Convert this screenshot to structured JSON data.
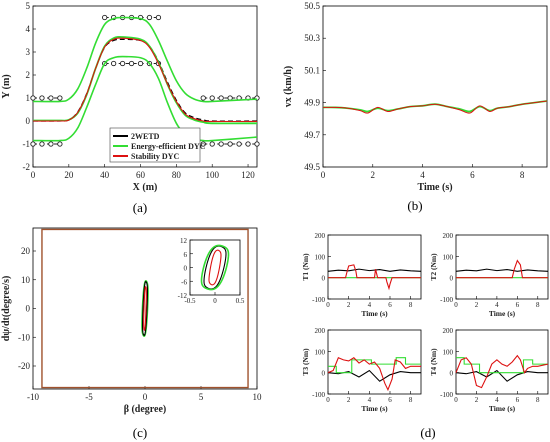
{
  "captions": [
    "(a)",
    "(b)",
    "(c)",
    "(d)"
  ],
  "colors": {
    "2WETD": "#000000",
    "energy": "#33dd33",
    "stability": "#dd1111",
    "boundary": "#a0522d"
  },
  "chart_data": [
    {
      "id": "a",
      "type": "line",
      "xlabel": "X (m)",
      "ylabel": "Y (m)",
      "xlim": [
        0,
        125
      ],
      "ylim": [
        -2,
        5
      ],
      "xticks": [
        0,
        20,
        40,
        60,
        80,
        100,
        120
      ],
      "yticks": [
        -2,
        -1,
        0,
        1,
        2,
        3,
        4,
        5
      ],
      "legend": {
        "placement": "bottom-center",
        "entries": [
          "2WETD",
          "Energy-efficient DYC",
          "Stability DYC"
        ]
      },
      "cones": [
        {
          "x": [
            0,
            5,
            10,
            15
          ],
          "y": 1
        },
        {
          "x": [
            0,
            5,
            10,
            15
          ],
          "y": -1
        },
        {
          "x": [
            40,
            45,
            50,
            55,
            60,
            65,
            70
          ],
          "y": 4.5
        },
        {
          "x": [
            40,
            45,
            50,
            55,
            60,
            65,
            70
          ],
          "y": 2.5
        },
        {
          "x": [
            95,
            100,
            105,
            110,
            115,
            120,
            125
          ],
          "y": 1
        },
        {
          "x": [
            95,
            100,
            105,
            110,
            115,
            120,
            125
          ],
          "y": -1
        }
      ],
      "series": [
        {
          "name": "2WETD",
          "x": [
            0,
            15,
            20,
            25,
            30,
            35,
            40,
            45,
            50,
            60,
            65,
            70,
            75,
            80,
            85,
            90,
            95,
            100,
            125
          ],
          "y": [
            0,
            0,
            0.05,
            0.4,
            1.2,
            2.3,
            3.2,
            3.5,
            3.55,
            3.5,
            3.25,
            2.6,
            1.7,
            0.9,
            0.35,
            0.15,
            0.05,
            0,
            0
          ]
        },
        {
          "name": "Energy-efficient DYC",
          "x": [
            0,
            15,
            20,
            25,
            30,
            35,
            40,
            45,
            50,
            60,
            65,
            70,
            75,
            80,
            85,
            90,
            95,
            100,
            125
          ],
          "y": [
            0.02,
            0.02,
            0.05,
            0.35,
            1.15,
            2.3,
            3.25,
            3.6,
            3.65,
            3.55,
            3.25,
            2.55,
            1.6,
            0.8,
            0.25,
            0.05,
            -0.05,
            -0.1,
            -0.1
          ]
        },
        {
          "name": "Stability DYC",
          "x": [
            0,
            15,
            20,
            25,
            30,
            35,
            40,
            45,
            50,
            60,
            65,
            70,
            75,
            80,
            85,
            90,
            95,
            100,
            125
          ],
          "y": [
            0,
            0,
            0.04,
            0.38,
            1.18,
            2.3,
            3.22,
            3.55,
            3.6,
            3.5,
            3.2,
            2.5,
            1.62,
            0.85,
            0.3,
            0.1,
            0,
            -0.02,
            -0.02
          ]
        },
        {
          "name": "Energy-efficient DYC upper",
          "x": [
            0,
            15,
            20,
            25,
            30,
            35,
            40,
            45,
            50,
            60,
            65,
            70,
            75,
            80,
            85,
            90,
            95,
            100,
            125
          ],
          "y": [
            0.85,
            0.85,
            0.95,
            1.4,
            2.3,
            3.4,
            4.2,
            4.45,
            4.5,
            4.45,
            4.2,
            3.5,
            2.6,
            1.75,
            1.2,
            0.95,
            0.85,
            0.85,
            0.95
          ]
        },
        {
          "name": "Energy-efficient DYC lower",
          "x": [
            0,
            15,
            20,
            25,
            30,
            35,
            40,
            45,
            50,
            60,
            65,
            70,
            75,
            80,
            85,
            90,
            95,
            100,
            125
          ],
          "y": [
            -0.85,
            -0.85,
            -0.75,
            -0.3,
            0.6,
            1.6,
            2.5,
            2.75,
            2.8,
            2.75,
            2.5,
            1.85,
            0.8,
            -0.1,
            -0.6,
            -0.8,
            -0.85,
            -0.85,
            -0.7
          ]
        }
      ]
    },
    {
      "id": "b",
      "type": "line",
      "xlabel": "Time (s)",
      "ylabel": "vx (km/h)",
      "xlim": [
        0,
        9
      ],
      "ylim": [
        49.5,
        50.5
      ],
      "xticks": [
        0,
        2,
        4,
        6,
        8
      ],
      "yticks": [
        49.5,
        49.7,
        49.9,
        50.1,
        50.3,
        50.5
      ],
      "series": [
        {
          "name": "Energy-efficient DYC",
          "x": [
            0,
            0.5,
            1,
            1.5,
            1.8,
            2.2,
            2.6,
            3,
            3.5,
            4,
            4.5,
            5,
            5.5,
            5.9,
            6.3,
            6.7,
            7,
            7.5,
            8,
            8.5,
            9
          ],
          "y": [
            49.87,
            49.87,
            49.865,
            49.855,
            49.845,
            49.865,
            49.85,
            49.86,
            49.875,
            49.88,
            49.89,
            49.875,
            49.86,
            49.845,
            49.875,
            49.85,
            49.865,
            49.875,
            49.89,
            49.9,
            49.91
          ]
        },
        {
          "name": "Stability DYC",
          "x": [
            0,
            0.5,
            1,
            1.5,
            1.8,
            2.2,
            2.6,
            3,
            3.5,
            4,
            4.5,
            5,
            5.5,
            5.9,
            6.3,
            6.7,
            7,
            7.5,
            8,
            8.5,
            9
          ],
          "y": [
            49.87,
            49.87,
            49.865,
            49.85,
            49.835,
            49.87,
            49.845,
            49.86,
            49.875,
            49.88,
            49.89,
            49.875,
            49.855,
            49.835,
            49.88,
            49.845,
            49.865,
            49.875,
            49.89,
            49.9,
            49.91
          ]
        }
      ]
    },
    {
      "id": "c",
      "type": "line",
      "xlabel": "β (degree)",
      "ylabel": "dψ/dt(degree/s)",
      "xlim": [
        -10,
        10
      ],
      "ylim": [
        -28,
        28
      ],
      "xticks": [
        -10,
        -5,
        0,
        5,
        10
      ],
      "yticks": [
        -20,
        -10,
        0,
        10,
        20
      ],
      "boundary": {
        "beta": [
          -9.2,
          9.2
        ],
        "yaw_rate": [
          -27.5,
          27.5
        ]
      },
      "inset": {
        "xlim": [
          -0.5,
          0.5
        ],
        "ylim": [
          -12,
          12
        ],
        "xticks": [
          -0.5,
          0,
          0.5
        ],
        "xtick_labels": [
          "-0.5",
          "0",
          "0.5"
        ],
        "yticks": [
          -12,
          -6,
          0,
          6,
          12
        ],
        "ytick_labels": [
          "-12",
          "-6",
          "0",
          "6",
          "12"
        ]
      },
      "series": [
        {
          "name": "2WETD",
          "beta_amp": 0.22,
          "yaw_amp": 10.5,
          "tilt": -0.35
        },
        {
          "name": "Energy-efficient DYC",
          "beta_amp": 0.27,
          "yaw_amp": 10.8,
          "tilt": -0.38
        },
        {
          "name": "Stability DYC",
          "beta_amp": 0.12,
          "yaw_amp": 8.5,
          "tilt": -0.3
        }
      ]
    },
    {
      "id": "d",
      "type": "line",
      "panels": [
        {
          "ylabel": "T1 (Nm)",
          "xlabel": "Time (s)",
          "xlim": [
            0,
            9
          ],
          "ylim": [
            -100,
            200
          ],
          "xticks": [
            0,
            2,
            4,
            6,
            8
          ],
          "yticks": [
            -100,
            0,
            100,
            200
          ],
          "series": [
            {
              "name": "2WETD",
              "x": [
                0,
                1,
                2,
                3,
                4,
                5,
                6,
                7,
                8,
                9
              ],
              "y": [
                30,
                35,
                32,
                40,
                33,
                38,
                30,
                36,
                32,
                30
              ]
            },
            {
              "name": "Energy-efficient DYC",
              "x": [
                0,
                9
              ],
              "y": [
                0,
                0
              ]
            },
            {
              "name": "Stability DYC",
              "x": [
                0,
                1.7,
                1.8,
                2.0,
                2.5,
                2.7,
                2.8,
                3,
                4.5,
                4.6,
                4.8,
                5.6,
                5.7,
                5.9,
                6.0,
                6.2,
                9
              ],
              "y": [
                0,
                0,
                20,
                55,
                60,
                30,
                0,
                0,
                0,
                40,
                0,
                0,
                -20,
                -50,
                -30,
                0,
                0
              ]
            }
          ]
        },
        {
          "ylabel": "T2 (Nm)",
          "xlabel": "Time (s)",
          "xlim": [
            0,
            9
          ],
          "ylim": [
            -100,
            200
          ],
          "xticks": [
            0,
            2,
            4,
            6,
            8
          ],
          "yticks": [
            -100,
            0,
            100,
            200
          ],
          "series": [
            {
              "name": "2WETD",
              "x": [
                0,
                1,
                2,
                3,
                4,
                5,
                6,
                7,
                8,
                9
              ],
              "y": [
                30,
                35,
                32,
                40,
                33,
                38,
                30,
                36,
                32,
                30
              ]
            },
            {
              "name": "Energy-efficient DYC",
              "x": [
                0,
                9
              ],
              "y": [
                0,
                0
              ]
            },
            {
              "name": "Stability DYC",
              "x": [
                0,
                5.5,
                5.7,
                6.0,
                6.3,
                6.5,
                9
              ],
              "y": [
                0,
                0,
                40,
                80,
                60,
                0,
                0
              ]
            }
          ]
        },
        {
          "ylabel": "T3 (Nm)",
          "xlabel": "Time (s)",
          "xlim": [
            0,
            9
          ],
          "ylim": [
            -100,
            200
          ],
          "xticks": [
            0,
            2,
            4,
            6,
            8
          ],
          "yticks": [
            -100,
            0,
            100,
            200
          ],
          "series": [
            {
              "name": "2WETD",
              "x": [
                0,
                1,
                2,
                3,
                4,
                5,
                6,
                7,
                8,
                9
              ],
              "y": [
                0,
                -5,
                5,
                -20,
                10,
                -40,
                -10,
                5,
                0,
                0
              ]
            },
            {
              "name": "Energy-efficient DYC",
              "x": [
                0,
                0.8,
                0.8,
                2.3,
                2.3,
                4.2,
                4.2,
                6.6,
                6.6,
                7.5,
                7.5,
                9
              ],
              "y": [
                30,
                30,
                0,
                0,
                60,
                60,
                40,
                40,
                70,
                70,
                40,
                40
              ]
            },
            {
              "name": "Stability DYC",
              "x": [
                0,
                0.5,
                1,
                1.5,
                2,
                2.5,
                3,
                3.5,
                4,
                4.5,
                5,
                5.5,
                5.8,
                6.2,
                6.5,
                7,
                7.5,
                8,
                8.5,
                9
              ],
              "y": [
                0,
                10,
                70,
                60,
                55,
                70,
                45,
                60,
                40,
                50,
                20,
                -50,
                -80,
                -30,
                60,
                50,
                20,
                30,
                30,
                30
              ]
            }
          ]
        },
        {
          "ylabel": "T4 (Nm)",
          "xlabel": "Time (s)",
          "xlim": [
            0,
            9
          ],
          "ylim": [
            -100,
            200
          ],
          "xticks": [
            0,
            2,
            4,
            6,
            8
          ],
          "yticks": [
            -100,
            0,
            100,
            200
          ],
          "series": [
            {
              "name": "2WETD",
              "x": [
                0,
                1,
                2,
                3,
                4,
                5,
                6,
                7,
                8,
                9
              ],
              "y": [
                0,
                -5,
                5,
                -20,
                10,
                -40,
                -10,
                5,
                0,
                0
              ]
            },
            {
              "name": "Energy-efficient DYC",
              "x": [
                0,
                0.8,
                0.8,
                2.3,
                2.3,
                4.2,
                4.2,
                6.6,
                6.6,
                7.5,
                7.5,
                9
              ],
              "y": [
                70,
                70,
                40,
                40,
                0,
                0,
                0,
                0,
                60,
                60,
                40,
                40
              ]
            },
            {
              "name": "Stability DYC",
              "x": [
                0,
                0.5,
                1,
                1.5,
                2,
                2.5,
                3,
                3.5,
                4,
                4.5,
                5,
                5.5,
                6,
                6.3,
                6.7,
                7,
                7.5,
                8,
                8.5,
                9
              ],
              "y": [
                0,
                60,
                70,
                40,
                -60,
                -70,
                -20,
                40,
                60,
                40,
                30,
                50,
                80,
                60,
                0,
                20,
                30,
                30,
                35,
                40
              ]
            }
          ]
        }
      ]
    }
  ]
}
